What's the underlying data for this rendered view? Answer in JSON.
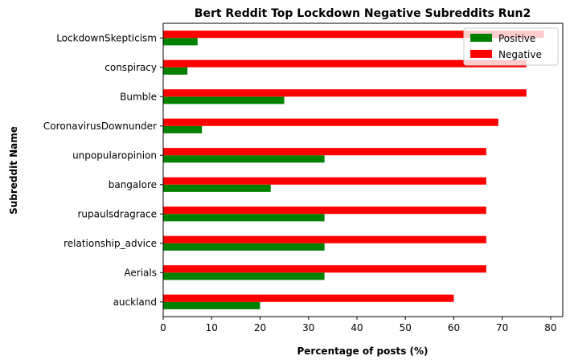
{
  "chart_data": {
    "type": "bar",
    "orientation": "horizontal",
    "title": "Bert Reddit Top Lockdown Negative Subreddits Run2",
    "xlabel": "Percentage of posts (%)",
    "ylabel": "Subreddit Name",
    "xlim": [
      0,
      82.5
    ],
    "xticks": [
      0,
      10,
      20,
      30,
      40,
      50,
      60,
      70,
      80
    ],
    "categories": [
      "auckland",
      "Aerials",
      "relationship_advice",
      "rupaulsdragrace",
      "bangalore",
      "unpopularopinion",
      "CoronavirusDownunder",
      "Bumble",
      "conspiracy",
      "LockdownSkepticism"
    ],
    "series": [
      {
        "name": "Positive",
        "color": "#008000",
        "values": [
          20,
          33.3,
          33.3,
          33.3,
          22.2,
          33.3,
          8,
          25,
          5,
          7.1
        ]
      },
      {
        "name": "Negative",
        "color": "#ff0000",
        "values": [
          60,
          66.7,
          66.7,
          66.7,
          66.7,
          66.7,
          69.2,
          75,
          75,
          78.6
        ]
      }
    ],
    "legend_position": "top-right",
    "grid": false
  }
}
